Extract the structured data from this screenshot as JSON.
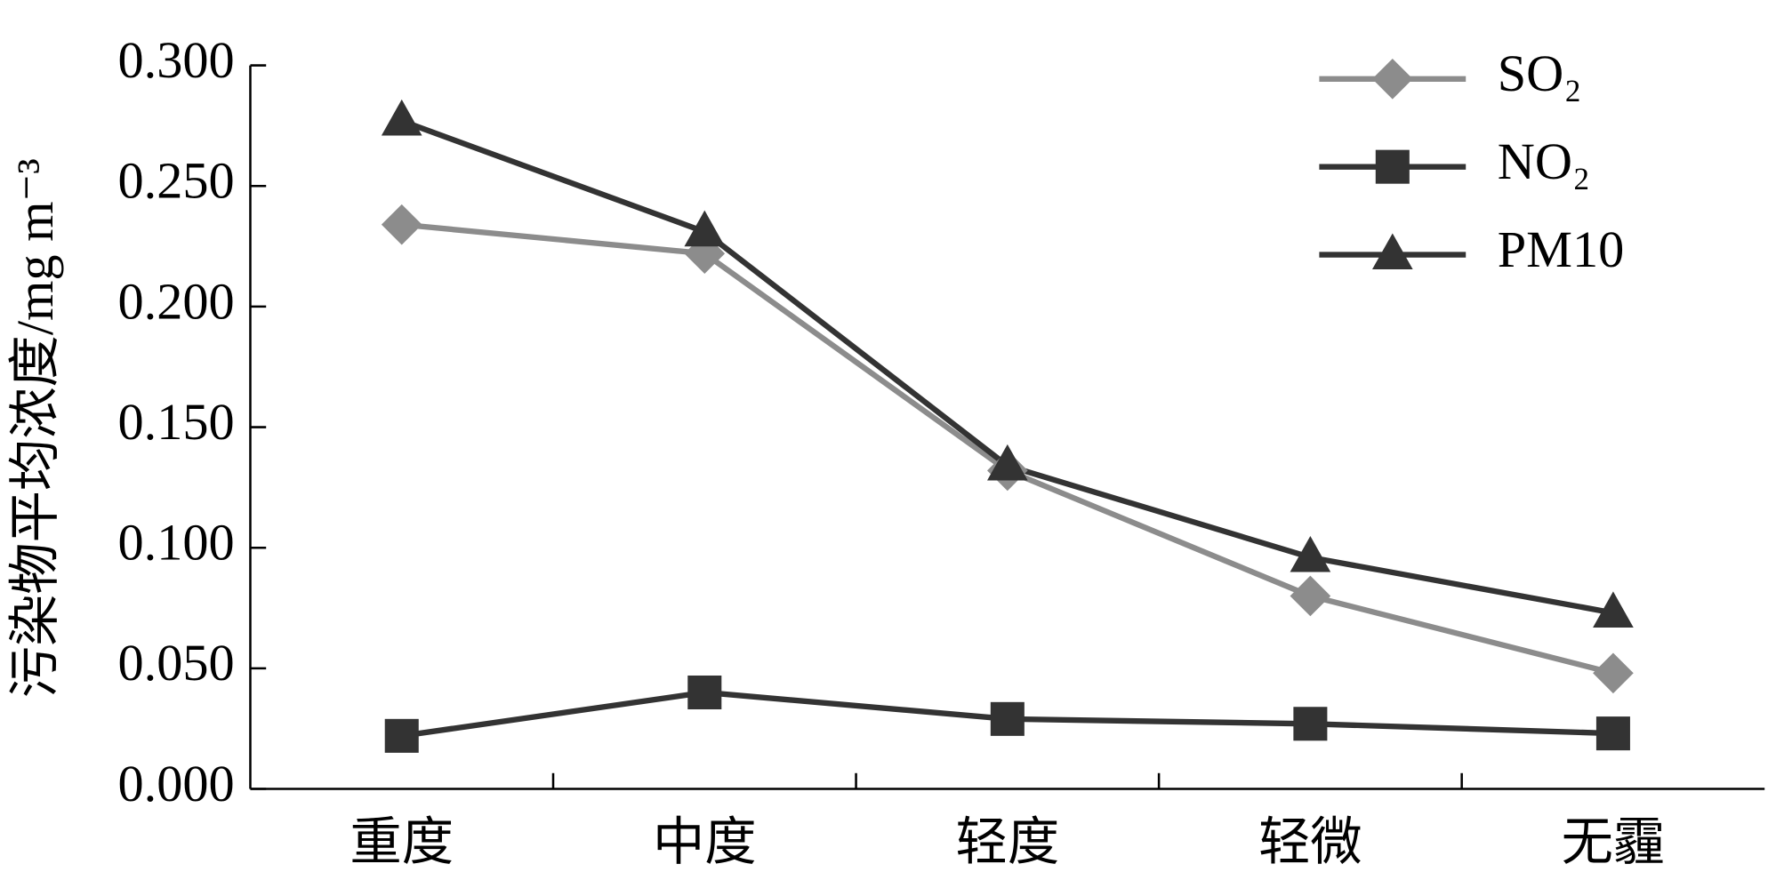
{
  "chart_data": {
    "type": "line",
    "y_label": "污染物平均浓度/mg m⁻³",
    "categories": [
      "重度",
      "中度",
      "轻度",
      "轻微",
      "无霾"
    ],
    "series": [
      {
        "name": "SO₂",
        "color": "#8c8c8c",
        "marker": "diamond",
        "values": [
          0.234,
          0.222,
          0.132,
          0.08,
          0.048
        ]
      },
      {
        "name": "NO₂",
        "color": "#333333",
        "marker": "square",
        "values": [
          0.022,
          0.04,
          0.029,
          0.027,
          0.023
        ]
      },
      {
        "name": "PM10",
        "color": "#333333",
        "marker": "triangle",
        "values": [
          0.277,
          0.231,
          0.134,
          0.096,
          0.073
        ]
      }
    ],
    "ylim": [
      0,
      0.3
    ],
    "yticks": [
      {
        "value": 0,
        "label": "0.000"
      },
      {
        "value": 0.05,
        "label": "0.050"
      },
      {
        "value": 0.1,
        "label": "0.100"
      },
      {
        "value": 0.15,
        "label": "0.150"
      },
      {
        "value": 0.2,
        "label": "0.200"
      },
      {
        "value": 0.25,
        "label": "0.250"
      },
      {
        "value": 0.3,
        "label": "0.300"
      }
    ],
    "legend": "upper right",
    "grid": false
  }
}
